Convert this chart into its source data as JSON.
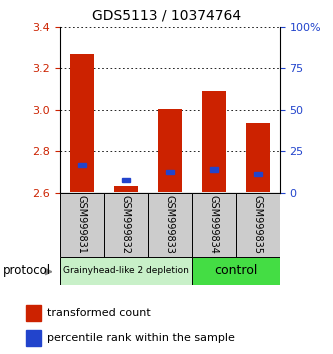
{
  "title": "GDS5113 / 10374764",
  "samples": [
    "GSM999831",
    "GSM999832",
    "GSM999833",
    "GSM999834",
    "GSM999835"
  ],
  "red_bar_bottom": [
    2.604,
    2.604,
    2.604,
    2.604,
    2.604
  ],
  "red_bar_top": [
    3.27,
    2.635,
    3.005,
    3.09,
    2.935
  ],
  "blue_square_y": [
    2.735,
    2.662,
    2.7,
    2.713,
    2.69
  ],
  "ylim": [
    2.6,
    3.4
  ],
  "yticks_left": [
    2.6,
    2.8,
    3.0,
    3.2,
    3.4
  ],
  "yticks_right": [
    0,
    25,
    50,
    75,
    100
  ],
  "ytick_labels_right": [
    "0",
    "25",
    "50",
    "75",
    "100%"
  ],
  "group_labels": [
    "Grainyhead-like 2 depletion",
    "control"
  ],
  "group_ranges": [
    [
      0,
      3
    ],
    [
      3,
      5
    ]
  ],
  "group_colors": [
    "#c8f0c8",
    "#44dd44"
  ],
  "protocol_label": "protocol",
  "legend_red": "transformed count",
  "legend_blue": "percentile rank within the sample",
  "bar_color": "#cc2200",
  "blue_color": "#2244cc",
  "bar_width": 0.55,
  "tick_label_color_left": "#cc2200",
  "tick_label_color_right": "#2244cc",
  "xlabel_bg": "#cccccc",
  "title_fontsize": 10
}
